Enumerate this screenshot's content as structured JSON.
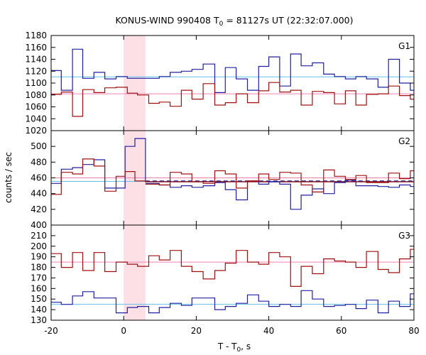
{
  "chart_data": {
    "type": "line",
    "title": "KONUS-WIND 990408 T",
    "title_sub": "0",
    "title_rest": " = 81127s UT (22:32:07.000)",
    "ylabel": "counts / sec",
    "xlabel": "T - T",
    "xlabel_sub": "0",
    "xlabel_rest": ", s",
    "xlim": [
      -20,
      80
    ],
    "xticks": [
      -20,
      0,
      20,
      40,
      60,
      80
    ],
    "shaded_interval": [
      0,
      6
    ],
    "colors": {
      "blue": "#2020a0",
      "red": "#a01010",
      "cyan": "#60c0e8",
      "pink": "#f080b0",
      "shade": "#fde0e6"
    },
    "panels": [
      {
        "label": "G1",
        "ylim": [
          1020,
          1180
        ],
        "yticks": [
          1020,
          1040,
          1060,
          1080,
          1100,
          1120,
          1140,
          1160,
          1180
        ],
        "background_levels": [
          {
            "value": 1110.5,
            "color": "#60c0e8",
            "style": "solid"
          },
          {
            "value": 1082,
            "color": "#f080b0",
            "style": "solid"
          }
        ],
        "series": [
          {
            "color": "#2020a0",
            "x": [
              -20,
              -17.2,
              -14.1,
              -11.3,
              -8.2,
              -5.2,
              -2.1,
              1.0,
              3.8,
              6.9,
              9.8,
              12.8,
              15.9,
              18.8,
              21.9,
              25.1,
              28,
              31,
              34.1,
              37.2,
              40,
              43,
              46,
              48.9,
              52,
              55.1,
              58.1,
              61.1,
              64,
              66.9,
              70.1,
              73,
              76,
              79
            ],
            "y": [
              1121,
              1088,
              1157,
              1108,
              1118,
              1107,
              1111,
              1108,
              1108,
              1108,
              1111,
              1118,
              1120,
              1123,
              1132,
              1084,
              1126,
              1107,
              1088,
              1128,
              1144,
              1095,
              1149,
              1129,
              1134,
              1115,
              1111,
              1107,
              1111,
              1107,
              1093,
              1140,
              1100,
              1088
            ]
          },
          {
            "color": "#a01010",
            "x": [
              -20,
              -17.2,
              -14.1,
              -11.3,
              -8.2,
              -5.2,
              -2.1,
              1.0,
              3.8,
              6.9,
              9.8,
              12.8,
              15.9,
              18.8,
              21.9,
              25.1,
              28,
              31,
              34.1,
              37.2,
              40,
              43,
              46,
              48.9,
              52,
              55.1,
              58.1,
              61.1,
              64,
              66.9,
              70.1,
              73,
              76,
              79
            ],
            "y": [
              1081,
              1085,
              1044,
              1089,
              1084,
              1092,
              1093,
              1083,
              1080,
              1066,
              1068,
              1061,
              1088,
              1073,
              1099,
              1063,
              1067,
              1082,
              1067,
              1087,
              1101,
              1085,
              1088,
              1063,
              1086,
              1084,
              1065,
              1087,
              1063,
              1081,
              1082,
              1095,
              1079,
              1073
            ]
          }
        ]
      },
      {
        "label": "G2",
        "ylim": [
          400,
          520
        ],
        "yticks": [
          400,
          420,
          440,
          460,
          480,
          500
        ],
        "background_levels": [
          {
            "value": 455.5,
            "color": "#60c0e8",
            "style": "solid"
          },
          {
            "value": 460,
            "color": "#f080b0",
            "style": "solid"
          },
          {
            "value": 456,
            "color": "#2020a0",
            "style": "dashed",
            "x_from": 6
          }
        ],
        "series": [
          {
            "color": "#2020a0",
            "x": [
              -20,
              -17.2,
              -14.1,
              -11.3,
              -8.2,
              -5.2,
              -2.1,
              0.4,
              3.1,
              6
            ],
            "y": [
              453,
              471,
              473,
              477,
              483,
              447,
              447,
              500,
              510,
              455
            ]
          },
          {
            "color": "#a01010",
            "x": [
              -20,
              -17.2,
              -14.1,
              -11.3,
              -8.2,
              -5.2,
              -2.1,
              0.4,
              3.1,
              6
            ],
            "y": [
              439,
              467,
              465,
              484,
              475,
              443,
              462,
              468,
              456,
              455
            ]
          },
          {
            "color": "#2020a0",
            "x": [
              6,
              9.8,
              12.8,
              15.9,
              18.8,
              21.9,
              25.1,
              28,
              31,
              34.1,
              37.2,
              40,
              43,
              46,
              48.9,
              52,
              55.1,
              58.1,
              61.1,
              64,
              66.9,
              70.1,
              73,
              76,
              79
            ],
            "y": [
              453,
              451,
              448,
              450,
              448,
              450,
              454,
              445,
              432,
              456,
              452,
              455,
              452,
              420,
              438,
              446,
              440,
              454,
              457,
              450,
              450,
              449,
              448,
              451,
              449
            ]
          },
          {
            "color": "#a01010",
            "x": [
              6,
              9.8,
              12.8,
              15.9,
              18.8,
              21.9,
              25.1,
              28,
              31,
              34.1,
              37.2,
              40,
              43,
              46,
              48.9,
              52,
              55.1,
              58.1,
              61.1,
              64,
              66.9,
              70.1,
              73,
              76,
              79
            ],
            "y": [
              452,
              451,
              467,
              465,
              455,
              453,
              469,
              465,
              447,
              456,
              465,
              458,
              467,
              466,
              451,
              442,
              470,
              462,
              458,
              463,
              454,
              454,
              466,
              459,
              469
            ]
          }
        ]
      },
      {
        "label": "G3",
        "ylim": [
          130,
          220
        ],
        "yticks": [
          130,
          140,
          150,
          160,
          170,
          180,
          190,
          200,
          210,
          220
        ],
        "background_levels": [
          {
            "value": 145,
            "color": "#60c0e8",
            "style": "solid"
          },
          {
            "value": 185,
            "color": "#f080b0",
            "style": "solid"
          }
        ],
        "series": [
          {
            "color": "#2020a0",
            "x": [
              -20,
              -17.2,
              -14.1,
              -11.3,
              -8.2,
              -5.2,
              -2.1,
              1.0,
              3.8,
              6.9,
              9.8,
              12.8,
              15.9,
              18.8,
              21.9,
              25.1,
              28,
              31,
              34.1,
              37.2,
              40,
              43,
              46,
              48.9,
              52,
              55.1,
              58.1,
              61.1,
              64,
              66.9,
              70.1,
              73,
              76,
              79
            ],
            "y": [
              147,
              145,
              153,
              157,
              151,
              151,
              137,
              142,
              143,
              137,
              142,
              146,
              144,
              151,
              151,
              140,
              143,
              146,
              154,
              148,
              143,
              145,
              143,
              158,
              150,
              143,
              144,
              145,
              141,
              149,
              137,
              148,
              143,
              155
            ]
          },
          {
            "color": "#a01010",
            "x": [
              -20,
              -17.2,
              -14.1,
              -11.3,
              -8.2,
              -5.2,
              -2.1,
              1.0,
              3.8,
              6.9,
              9.8,
              12.8,
              15.9,
              18.8,
              21.9,
              25.1,
              28,
              31,
              34.1,
              37.2,
              40,
              43,
              46,
              48.9,
              52,
              55.1,
              58.1,
              61.1,
              64,
              66.9,
              70.1,
              73,
              76,
              79
            ],
            "y": [
              193,
              180,
              194,
              177,
              194,
              176,
              185,
              183,
              181,
              191,
              187,
              196,
              181,
              176,
              169,
              177,
              184,
              196,
              185,
              183,
              194,
              190,
              162,
              181,
              174,
              188,
              186,
              185,
              180,
              195,
              178,
              175,
              188,
              197
            ]
          }
        ]
      }
    ]
  }
}
